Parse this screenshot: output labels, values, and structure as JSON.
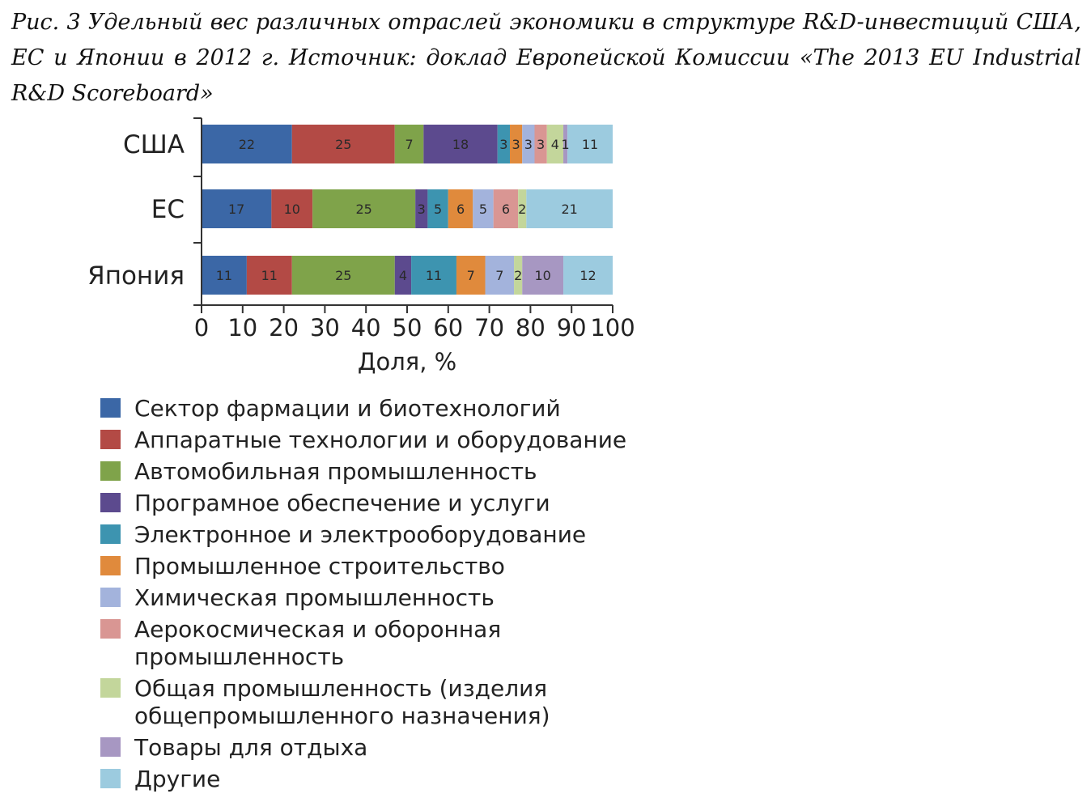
{
  "caption": "Рис. 3 Удельный вес различных отраслей экономики в структуре R&D-инвестиций США, ЕС и Японии в 2012 г. Источник: доклад Европейской Комиссии «The 2013 EU Industrial R&D Scoreboard»",
  "chart_data": {
    "type": "bar",
    "orientation": "horizontal",
    "stacked": true,
    "title": "",
    "xlabel": "Доля, %",
    "ylabel": "",
    "xlim": [
      0,
      100
    ],
    "xticks": [
      "0",
      "10",
      "20",
      "30",
      "40",
      "50",
      "60",
      "70",
      "80",
      "90",
      "100"
    ],
    "grid": false,
    "legend_position": "bottom",
    "categories": [
      "США",
      "ЕС",
      "Япония"
    ],
    "series": [
      {
        "name": "Сектор фармации и биотехнологий",
        "color": "#3b67a6",
        "values": [
          22,
          17,
          11
        ]
      },
      {
        "name": "Аппаратные технологии и оборудование",
        "color": "#b34a45",
        "values": [
          25,
          10,
          11
        ]
      },
      {
        "name": "Автомобильная промышленность",
        "color": "#7fa34a",
        "values": [
          7,
          25,
          25
        ]
      },
      {
        "name": "Програмное обеспечение и услуги",
        "color": "#5c4a8e",
        "values": [
          18,
          3,
          4
        ]
      },
      {
        "name": "Электронное и электрооборудование",
        "color": "#3d94b0",
        "values": [
          3,
          5,
          11
        ]
      },
      {
        "name": "Промышленное строительство",
        "color": "#e08a3c",
        "values": [
          3,
          6,
          7
        ]
      },
      {
        "name": "Химическая промышленность",
        "color": "#a3b3dc",
        "values": [
          3,
          5,
          7
        ]
      },
      {
        "name": "Аерокосмическая и оборонная промышленность",
        "color": "#d99693",
        "values": [
          3,
          6,
          0
        ]
      },
      {
        "name": "Общая промышленность (изделия общепромышленного назначения)",
        "color": "#c3d69b",
        "values": [
          4,
          2,
          2
        ]
      },
      {
        "name": "Товары для отдыха",
        "color": "#a797c2",
        "values": [
          1,
          0,
          10
        ]
      },
      {
        "name": "Другие",
        "color": "#9ccbdf",
        "values": [
          11,
          21,
          12
        ]
      }
    ],
    "data_labels": [
      [
        "22",
        "25",
        "7",
        "18",
        "3",
        "3",
        "3",
        "3",
        "4",
        "1",
        "11"
      ],
      [
        "17",
        "10",
        "25",
        "3",
        "5",
        "6",
        "5",
        "6",
        "2",
        "",
        "21"
      ],
      [
        "11",
        "11",
        "25",
        "4",
        "11",
        "7",
        "7",
        "",
        "2",
        "10",
        "12"
      ]
    ]
  }
}
